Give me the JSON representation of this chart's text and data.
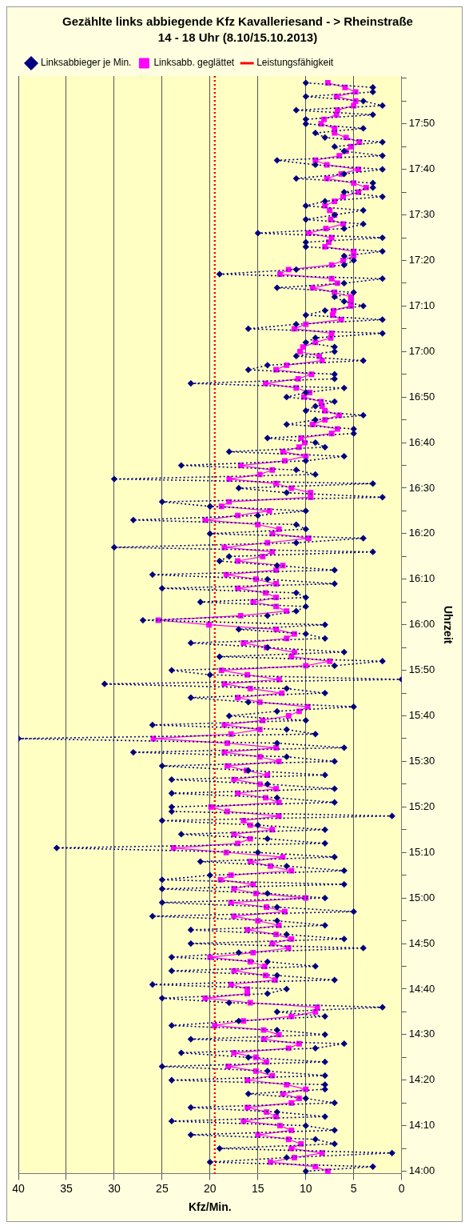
{
  "chart_data": {
    "type": "line",
    "orientation": "horizontal",
    "title": "Gezählte links abbiegende Kfz Kavalleriesand - > Rheinstraße",
    "subtitle": "14 - 18 Uhr (8.10/15.10.2013)",
    "xlabel": "Kfz/Min.",
    "ylabel": "Uhrzeit",
    "categories": [
      null,
      null,
      null,
      null,
      null,
      null,
      null,
      null,
      null,
      null,
      "17:50",
      null,
      null,
      null,
      null,
      null,
      null,
      null,
      null,
      null,
      "17:40",
      null,
      null,
      null,
      null,
      null,
      null,
      null,
      null,
      null,
      "17:30",
      null,
      null,
      null,
      null,
      null,
      null,
      null,
      null,
      null,
      "17:20",
      null,
      null,
      null,
      null,
      null,
      null,
      null,
      null,
      null,
      "17:10",
      null,
      null,
      null,
      null,
      null,
      null,
      null,
      null,
      null,
      "17:00",
      null,
      null,
      null,
      null,
      null,
      null,
      null,
      null,
      null,
      "16:50",
      null,
      null,
      null,
      null,
      null,
      null,
      null,
      null,
      null,
      "16:40",
      null,
      null,
      null,
      null,
      null,
      null,
      null,
      null,
      null,
      "16:30",
      null,
      null,
      null,
      null,
      null,
      null,
      null,
      null,
      null,
      "16:20",
      null,
      null,
      null,
      null,
      null,
      null,
      null,
      null,
      null,
      "16:10",
      null,
      null,
      null,
      null,
      null,
      null,
      null,
      null,
      null,
      "16:00",
      null,
      null,
      null,
      null,
      null,
      null,
      null,
      null,
      null,
      "15:50",
      null,
      null,
      null,
      null,
      null,
      null,
      null,
      null,
      null,
      "15:40",
      null,
      null,
      null,
      null,
      null,
      null,
      null,
      null,
      null,
      "15:30",
      null,
      null,
      null,
      null,
      null,
      null,
      null,
      null,
      null,
      "15:20",
      null,
      null,
      null,
      null,
      null,
      null,
      null,
      null,
      null,
      "15:10",
      null,
      null,
      null,
      null,
      null,
      null,
      null,
      null,
      null,
      "15:00",
      null,
      null,
      null,
      null,
      null,
      null,
      null,
      null,
      null,
      "14:50",
      null,
      null,
      null,
      null,
      null,
      null,
      null,
      null,
      null,
      "14:40",
      null,
      null,
      null,
      null,
      null,
      null,
      null,
      null,
      null,
      "14:30",
      null,
      null,
      null,
      null,
      null,
      null,
      null,
      null,
      null,
      "14:20",
      null,
      null,
      null,
      null,
      null,
      null,
      null,
      null,
      null,
      "14:10",
      null,
      null,
      null,
      null,
      null,
      null,
      null,
      null,
      null,
      "14:00"
    ],
    "series": [
      {
        "name": "Linksabbieger je Min.",
        "color": "#000080",
        "marker": "diamond",
        "line_style": "dotted",
        "values": [
          null,
          10,
          3,
          3,
          10,
          4,
          2,
          11,
          3,
          10,
          10,
          4,
          9,
          8,
          2,
          7,
          6,
          2,
          13,
          9,
          2,
          6,
          11,
          3,
          3,
          6,
          2,
          8,
          10,
          4,
          7,
          10,
          4,
          6,
          15,
          2,
          10,
          10,
          2,
          6,
          5,
          6,
          11,
          19,
          2,
          6,
          13,
          5,
          7,
          6,
          4,
          8,
          10,
          2,
          11,
          16,
          2,
          9,
          10,
          7,
          7,
          11,
          4,
          14,
          16,
          7,
          7,
          22,
          6,
          10,
          12,
          7,
          9,
          10,
          4,
          9,
          12,
          5,
          5,
          14,
          9,
          8,
          18,
          6,
          10,
          23,
          11,
          9,
          30,
          3,
          17,
          12,
          2,
          25,
          20,
          10,
          15,
          28,
          11,
          10,
          20,
          4,
          11,
          30,
          3,
          18,
          19,
          13,
          7,
          26,
          14,
          7,
          25,
          11,
          10,
          21,
          10,
          11,
          14,
          27,
          8,
          17,
          10,
          8,
          22,
          14,
          6,
          19,
          2,
          7,
          24,
          20,
          0,
          31,
          12,
          8,
          22,
          16,
          5,
          13,
          18,
          10,
          26,
          12,
          9,
          40,
          13,
          6,
          28,
          12,
          7,
          25,
          16,
          8,
          24,
          14,
          7,
          24,
          13,
          7,
          24,
          24,
          1,
          25,
          15,
          8,
          23,
          14,
          8,
          36,
          15,
          7,
          21,
          12,
          6,
          20,
          25,
          6,
          25,
          14,
          8,
          25,
          13,
          5,
          26,
          13,
          8,
          22,
          12,
          6,
          22,
          4,
          17,
          24,
          14,
          9,
          24,
          13,
          7,
          26,
          12,
          14,
          25,
          18,
          2,
          13,
          8,
          17,
          24,
          13,
          8,
          22,
          6,
          9,
          23,
          16,
          8,
          25,
          14,
          8,
          24,
          8,
          8,
          16,
          10,
          7,
          22,
          13,
          8,
          24,
          10,
          7,
          22,
          9,
          7,
          19,
          1,
          12,
          20,
          3,
          10
        ]
      },
      {
        "name": "Linksabb. geglättet",
        "color": "#ff00ff",
        "marker": "square",
        "line_style": "solid",
        "values": [
          null,
          7.7,
          5.9,
          4.8,
          6.8,
          4.8,
          5.0,
          6.7,
          6.8,
          8.1,
          8.4,
          7.0,
          7.0,
          5.8,
          4.4,
          5.3,
          5.8,
          6.5,
          9.0,
          7.8,
          4.5,
          6.3,
          7.8,
          5.0,
          3.7,
          4.5,
          6.1,
          7.0,
          8.0,
          7.5,
          7.0,
          7.4,
          6.1,
          7.9,
          9.7,
          7.3,
          7.6,
          8.0,
          5.0,
          5.0,
          6.1,
          7.3,
          11.8,
          12.7,
          7.3,
          6.7,
          9.3,
          7.0,
          5.3,
          5.3,
          5.3,
          7.1,
          7.2,
          6.3,
          10.0,
          11.2,
          7.3,
          7.4,
          9.0,
          10.3,
          10.6,
          8.6,
          8.3,
          12.0,
          13.1,
          9.4,
          10.8,
          14.2,
          11.0,
          9.6,
          10.2,
          8.4,
          8.3,
          8.0,
          6.5,
          8.0,
          9.3,
          6.7,
          7.3,
          10.5,
          10.1,
          10.7,
          12.4,
          10.0,
          12.2,
          16.8,
          13.5,
          14.8,
          18.0,
          13.1,
          11.5,
          9.5,
          9.5,
          18.0,
          18.8,
          13.8,
          17.1,
          20.5,
          15.0,
          12.8,
          13.5,
          9.7,
          14.0,
          18.5,
          13.5,
          14.5,
          17.1,
          12.4,
          13.1,
          18.3,
          15.2,
          13.1,
          17.1,
          14.2,
          13.1,
          15.5,
          13.1,
          12.0,
          16.8,
          25.4,
          20.1,
          13.1,
          11.2,
          12.0,
          16.5,
          14.1,
          11.2,
          11.5,
          7.5,
          10.0,
          18.8,
          16.1,
          12.8,
          18.5,
          15.8,
          12.5,
          17.1,
          14.8,
          9.8,
          10.7,
          11.8,
          14.5,
          18.5,
          14.8,
          17.8,
          25.9,
          18.2,
          13.1,
          18.5,
          14.8,
          12.8,
          18.2,
          16.2,
          14.0,
          17.5,
          14.8,
          13.1,
          17.1,
          14.2,
          12.8,
          19.9,
          18.2,
          12.8,
          16.5,
          15.8,
          13.5,
          17.5,
          15.8,
          17.1,
          23.8,
          18.3,
          12.4,
          15.8,
          13.7,
          11.5,
          17.8,
          18.9,
          15.5,
          17.5,
          15.2,
          10.0,
          17.8,
          14.1,
          12.2,
          17.5,
          15.0,
          12.8,
          16.1,
          13.1,
          11.5,
          13.5,
          11.8,
          15.5,
          20.0,
          15.8,
          14.3,
          17.5,
          14.2,
          13.2,
          17.8,
          16.1,
          16.1,
          20.5,
          15.8,
          8.8,
          9.0,
          11.5,
          16.5,
          19.5,
          14.4,
          12.8,
          14.4,
          10.7,
          11.8,
          17.5,
          15.2,
          14.1,
          18.1,
          15.2,
          13.5,
          16.1,
          12.0,
          10.0,
          12.4,
          10.7,
          11.5,
          16.1,
          14.1,
          13.1,
          16.5,
          12.7,
          11.5,
          15.0,
          11.8,
          10.5,
          11.5,
          8.3,
          11.2,
          13.7,
          9.0,
          7.7
        ]
      }
    ],
    "xlim": [
      40,
      0
    ],
    "xticks": [
      0,
      5,
      10,
      15,
      20,
      25,
      30,
      35,
      40
    ],
    "ref_lines": [
      {
        "axis": "x",
        "value": 19.5,
        "label": "Leistungsfähigkeit",
        "color": "#ff0000",
        "line_style": "dotted"
      }
    ],
    "grid": "x",
    "legend": "top left"
  }
}
